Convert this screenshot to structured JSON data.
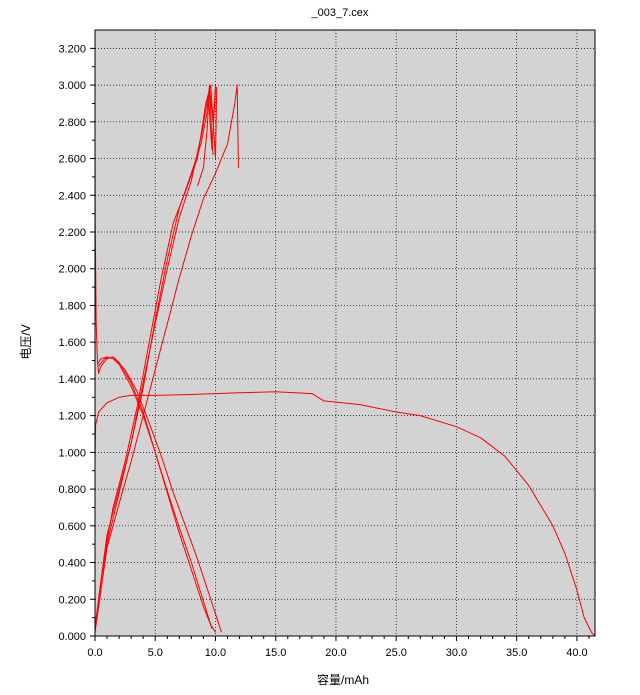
{
  "chart_data": {
    "type": "line",
    "title": "_003_7.cex",
    "xlabel": "容量/mAh",
    "ylabel": "电压/V",
    "xlim": [
      0,
      41.5
    ],
    "ylim": [
      0,
      3.3
    ],
    "x_ticks": [
      "0.0",
      "5.0",
      "10.0",
      "15.0",
      "20.0",
      "25.0",
      "30.0",
      "35.0",
      "40.0"
    ],
    "y_ticks": [
      "0.000",
      "0.200",
      "0.400",
      "0.600",
      "0.800",
      "1.000",
      "1.200",
      "1.400",
      "1.600",
      "1.800",
      "2.000",
      "2.200",
      "2.400",
      "2.600",
      "2.800",
      "3.000",
      "3.200"
    ],
    "grid": true,
    "series_color": "#ff0000",
    "plot_background": "#d3d3d3",
    "series": [
      {
        "x": [
          0.0,
          0.05,
          0.3,
          1.0,
          2.0,
          3.0,
          5.0,
          8.0,
          10.0,
          12.0,
          15.0,
          18.0,
          19.0,
          22.0,
          25.0,
          27.0,
          30.0,
          32.0,
          34.0,
          36.0,
          38.0,
          39.0,
          40.0,
          40.6,
          41.2,
          41.5
        ],
        "y": [
          0.95,
          1.15,
          1.22,
          1.27,
          1.3,
          1.31,
          1.31,
          1.315,
          1.32,
          1.325,
          1.33,
          1.32,
          1.28,
          1.26,
          1.22,
          1.2,
          1.14,
          1.08,
          0.98,
          0.82,
          0.6,
          0.45,
          0.25,
          0.1,
          0.02,
          0.0
        ]
      },
      {
        "x": [
          0.0,
          0.02,
          0.1,
          0.2,
          0.3,
          0.5,
          1.0,
          1.5,
          2.0,
          3.0,
          4.0,
          5.0,
          6.0,
          7.0,
          8.0,
          9.0,
          9.6,
          10.0
        ],
        "y": [
          2.7,
          2.25,
          1.7,
          1.5,
          1.43,
          1.47,
          1.51,
          1.52,
          1.49,
          1.38,
          1.22,
          1.0,
          0.78,
          0.56,
          0.36,
          0.16,
          0.06,
          0.02
        ]
      },
      {
        "x": [
          0.2,
          0.5,
          1.0,
          1.5,
          2.0,
          3.0,
          4.0,
          5.0,
          6.0,
          7.0,
          8.0,
          9.0,
          9.7
        ],
        "y": [
          1.48,
          1.51,
          1.52,
          1.51,
          1.48,
          1.36,
          1.2,
          1.0,
          0.79,
          0.59,
          0.4,
          0.19,
          0.04
        ]
      },
      {
        "x": [
          0.3,
          0.8,
          1.5,
          2.5,
          3.5,
          4.5,
          5.5,
          6.5,
          7.5,
          8.5,
          9.5,
          10.5
        ],
        "y": [
          1.47,
          1.51,
          1.52,
          1.45,
          1.33,
          1.16,
          0.98,
          0.78,
          0.6,
          0.42,
          0.22,
          0.02
        ]
      },
      {
        "x": [
          0.0,
          0.2,
          0.5,
          1.0,
          2.0,
          3.0,
          4.0,
          5.0,
          6.0,
          7.0,
          8.0,
          8.8,
          9.3,
          9.5,
          9.7,
          9.8
        ],
        "y": [
          0.05,
          0.15,
          0.3,
          0.55,
          0.8,
          1.05,
          1.35,
          1.72,
          2.05,
          2.33,
          2.52,
          2.68,
          2.85,
          3.0,
          2.7,
          2.62
        ]
      },
      {
        "x": [
          0.05,
          0.3,
          0.8,
          1.5,
          2.5,
          3.5,
          4.5,
          5.5,
          6.5,
          7.5,
          8.5,
          9.2,
          9.6,
          10.0,
          10.1
        ],
        "y": [
          0.05,
          0.2,
          0.45,
          0.7,
          0.95,
          1.25,
          1.6,
          1.95,
          2.25,
          2.42,
          2.6,
          2.9,
          3.0,
          2.6,
          2.99
        ]
      },
      {
        "x": [
          0.1,
          0.5,
          1.0,
          2.0,
          3.0,
          4.0,
          5.0,
          6.0,
          7.0,
          8.0,
          8.9,
          9.4,
          9.7,
          10.0
        ],
        "y": [
          0.08,
          0.3,
          0.5,
          0.78,
          1.05,
          1.38,
          1.7,
          2.0,
          2.28,
          2.48,
          2.75,
          2.95,
          2.65,
          2.98
        ]
      },
      {
        "x": [
          0.0,
          0.5,
          1.0,
          2.0,
          3.0,
          4.0,
          5.0,
          6.0,
          7.0,
          8.0,
          9.0,
          10.0,
          11.0,
          11.6,
          11.8,
          11.9
        ],
        "y": [
          0.02,
          0.25,
          0.48,
          0.72,
          0.95,
          1.2,
          1.45,
          1.7,
          1.95,
          2.18,
          2.38,
          2.52,
          2.68,
          2.9,
          3.0,
          2.55
        ]
      },
      {
        "x": [
          8.5,
          9.0,
          9.3,
          9.5,
          9.8,
          10.0
        ],
        "y": [
          2.45,
          2.55,
          2.75,
          2.98,
          2.8,
          3.0
        ]
      }
    ]
  }
}
